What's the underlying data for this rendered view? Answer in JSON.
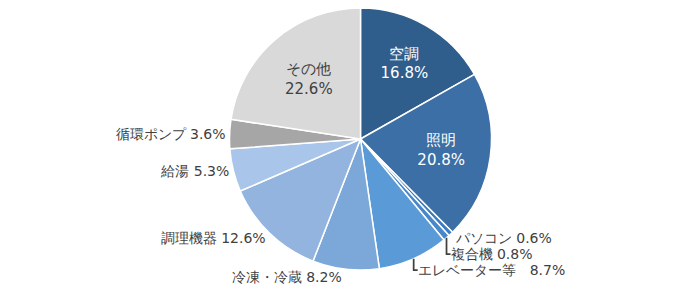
{
  "chart_data": {
    "type": "pie",
    "categories": [
      "空調",
      "照明",
      "パソコン",
      "複合機",
      "エレベーター等",
      "冷凍・冷蔵",
      "調理機器",
      "給湯",
      "循環ポンプ",
      "その他"
    ],
    "values": [
      16.8,
      20.8,
      0.6,
      0.8,
      8.7,
      8.2,
      12.6,
      5.3,
      3.6,
      22.6
    ],
    "value_labels": [
      "空調\n16.8%",
      "照明\n20.8%",
      "パソコン 0.6%",
      "複合機 0.8%",
      "エレベーター等　8.7%",
      "冷凍・冷蔵 8.2%",
      "調理機器 12.6%",
      "給湯 5.3%",
      "循環ポンプ 3.6%",
      "その他\n22.6%"
    ],
    "colors": [
      "#2f5d8c",
      "#3b6fa6",
      "#3d7cc0",
      "#4887cb",
      "#5a9ad6",
      "#7ba7d9",
      "#93b4df",
      "#a9c5ea",
      "#a6a6a6",
      "#d9d9d9"
    ],
    "data_labels": true
  }
}
